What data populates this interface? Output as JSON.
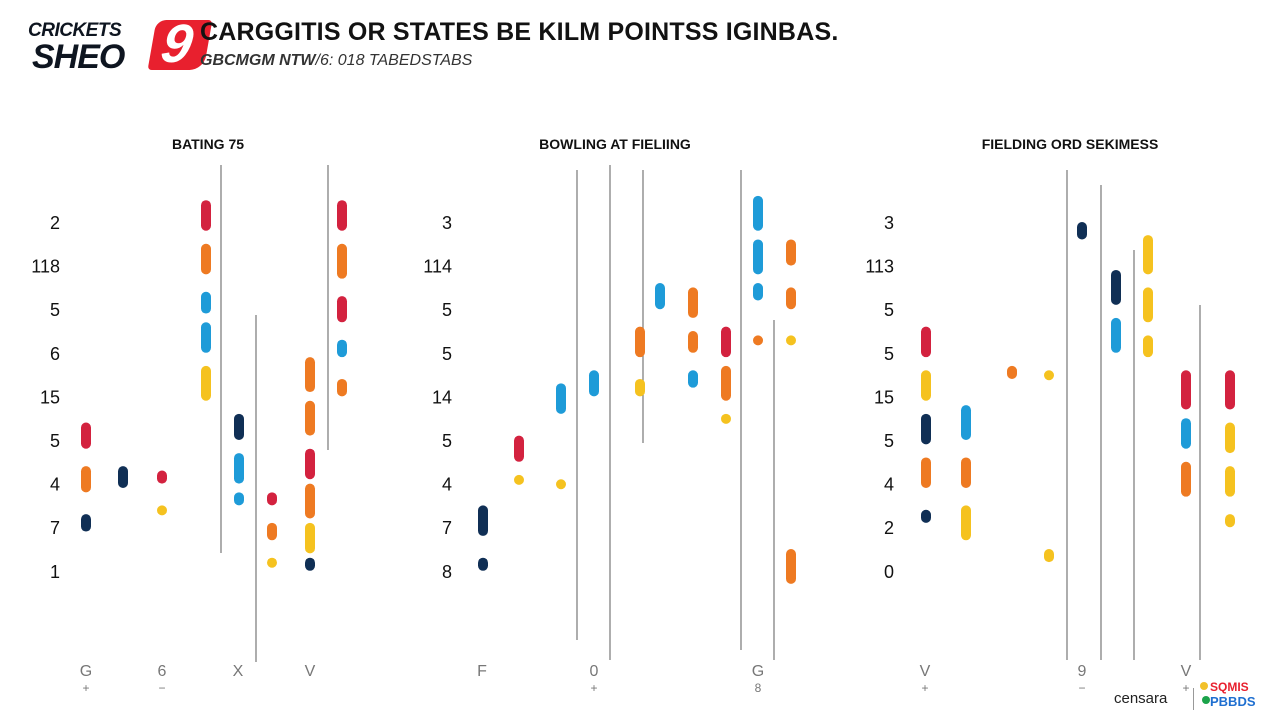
{
  "logo": {
    "top": "CRICKETS",
    "bottom": "SHEO",
    "badge": "9"
  },
  "header": {
    "title": "CARGGITIS OR STATES BE KILM POINTSS IGINBAS.",
    "subtitle_bold": "GBCMGM NTW",
    "subtitle_rest": "/6: 018 TABEDSTABS"
  },
  "footer": {
    "credit": "censara",
    "brand_top": "SQMIS",
    "brand_bottom": "PBBDS"
  },
  "colors": {
    "red": "#d3223f",
    "orange": "#ee7a22",
    "blue": "#1e9bd8",
    "navy": "#102f55",
    "yellow": "#f5c21f",
    "line": "#777777"
  },
  "chart_data": [
    {
      "type": "scatter",
      "title": "BATING 75",
      "ylabels": [
        "2",
        "118",
        "5",
        "6",
        "15",
        "5",
        "4",
        "7",
        "1"
      ],
      "xlabels": [
        {
          "text": "G",
          "sub": "+"
        },
        {
          "text": "6",
          "sub": "−"
        },
        {
          "text": "X",
          "sub": ""
        },
        {
          "text": "V",
          "sub": ""
        }
      ],
      "columns": [
        {
          "marks": [
            {
              "from": 4.6,
              "to": 5.2,
              "color": "red"
            },
            {
              "from": 5.6,
              "to": 6.2,
              "color": "orange"
            },
            {
              "from": 6.7,
              "to": 7.1,
              "color": "navy"
            }
          ]
        },
        {
          "marks": [
            {
              "from": 5.6,
              "to": 6.1,
              "color": "navy"
            }
          ]
        },
        {
          "marks": [
            {
              "from": 5.7,
              "to": 6.0,
              "color": "red"
            },
            {
              "from": 6.5,
              "to": 6.7,
              "color": "yellow"
            }
          ]
        },
        {
          "marks": [
            {
              "from": -0.5,
              "to": 0.2,
              "color": "red"
            },
            {
              "from": 0.5,
              "to": 1.2,
              "color": "orange"
            },
            {
              "from": 1.6,
              "to": 2.1,
              "color": "blue"
            },
            {
              "from": 2.3,
              "to": 3.0,
              "color": "blue"
            },
            {
              "from": 3.3,
              "to": 4.1,
              "color": "yellow"
            }
          ]
        },
        {
          "marks": [
            {
              "from": 4.4,
              "to": 5.0,
              "color": "navy"
            },
            {
              "from": 5.3,
              "to": 6.0,
              "color": "blue"
            },
            {
              "from": 6.2,
              "to": 6.5,
              "color": "blue"
            }
          ]
        },
        {
          "marks": [
            {
              "from": 6.2,
              "to": 6.5,
              "color": "red"
            },
            {
              "from": 6.9,
              "to": 7.3,
              "color": "orange"
            },
            {
              "from": 7.7,
              "to": 7.8,
              "color": "yellow"
            }
          ]
        },
        {
          "marks": [
            {
              "from": 3.1,
              "to": 3.9,
              "color": "orange"
            },
            {
              "from": 4.1,
              "to": 4.9,
              "color": "orange"
            },
            {
              "from": 5.2,
              "to": 5.9,
              "color": "red"
            },
            {
              "from": 6.0,
              "to": 6.8,
              "color": "orange"
            },
            {
              "from": 6.9,
              "to": 7.6,
              "color": "yellow"
            },
            {
              "from": 7.7,
              "to": 8.0,
              "color": "navy"
            }
          ]
        },
        {
          "marks": [
            {
              "from": -0.5,
              "to": 0.2,
              "color": "red"
            },
            {
              "from": 0.5,
              "to": 1.3,
              "color": "orange"
            },
            {
              "from": 1.7,
              "to": 2.3,
              "color": "red"
            },
            {
              "from": 2.7,
              "to": 3.1,
              "color": "blue"
            },
            {
              "from": 3.6,
              "to": 4.0,
              "color": "orange"
            }
          ]
        }
      ]
    },
    {
      "type": "scatter",
      "title": "BOWLING AT FIELIING",
      "ylabels": [
        "3",
        "114",
        "5",
        "5",
        "14",
        "5",
        "4",
        "7",
        "8"
      ],
      "xlabels": [
        {
          "text": "F",
          "sub": ""
        },
        {
          "text": "0",
          "sub": "+"
        },
        {
          "text": "G",
          "sub": "8"
        }
      ],
      "columns": [
        {
          "marks": [
            {
              "from": 6.5,
              "to": 7.2,
              "color": "navy"
            },
            {
              "from": 7.7,
              "to": 8.0,
              "color": "navy"
            }
          ]
        },
        {
          "marks": [
            {
              "from": 4.9,
              "to": 5.5,
              "color": "red"
            },
            {
              "from": 5.8,
              "to": 6.0,
              "color": "yellow"
            }
          ]
        },
        {
          "marks": [
            {
              "from": 3.7,
              "to": 4.4,
              "color": "blue"
            },
            {
              "from": 5.9,
              "to": 6.0,
              "color": "yellow"
            }
          ]
        },
        {
          "marks": [
            {
              "from": 3.4,
              "to": 4.0,
              "color": "blue"
            }
          ]
        },
        {
          "marks": [
            {
              "from": 1.4,
              "to": 2.0,
              "color": "blue"
            }
          ]
        },
        {
          "marks": [
            {
              "from": 1.5,
              "to": 2.2,
              "color": "orange"
            },
            {
              "from": 2.5,
              "to": 3.0,
              "color": "orange"
            },
            {
              "from": 3.4,
              "to": 3.8,
              "color": "blue"
            }
          ]
        },
        {
          "marks": [
            {
              "from": 2.4,
              "to": 3.1,
              "color": "red"
            },
            {
              "from": 3.3,
              "to": 4.1,
              "color": "orange"
            },
            {
              "from": 4.4,
              "to": 4.6,
              "color": "yellow"
            }
          ]
        },
        {
          "marks": [
            {
              "from": -0.6,
              "to": 0.2,
              "color": "blue"
            },
            {
              "from": 0.4,
              "to": 1.2,
              "color": "blue"
            },
            {
              "from": 1.4,
              "to": 1.8,
              "color": "blue"
            },
            {
              "from": 2.6,
              "to": 2.8,
              "color": "orange"
            }
          ]
        },
        {
          "marks": [
            {
              "from": 0.4,
              "to": 1.0,
              "color": "orange"
            },
            {
              "from": 1.5,
              "to": 2.0,
              "color": "orange"
            },
            {
              "from": 2.6,
              "to": 2.7,
              "color": "yellow"
            },
            {
              "from": 7.5,
              "to": 8.3,
              "color": "orange"
            }
          ]
        },
        {
          "marks": [
            {
              "from": 2.4,
              "to": 3.1,
              "color": "orange"
            },
            {
              "from": 3.6,
              "to": 4.0,
              "color": "yellow"
            }
          ]
        }
      ]
    },
    {
      "type": "scatter",
      "title": "FIELDING ORD SEKIMESS",
      "ylabels": [
        "3",
        "113",
        "5",
        "5",
        "15",
        "5",
        "4",
        "2",
        "0"
      ],
      "xlabels": [
        {
          "text": "V",
          "sub": "+"
        },
        {
          "text": "9",
          "sub": "−"
        },
        {
          "text": "V",
          "sub": "+"
        }
      ],
      "columns": [
        {
          "marks": [
            {
              "from": 2.4,
              "to": 3.1,
              "color": "red"
            },
            {
              "from": 3.4,
              "to": 4.1,
              "color": "yellow"
            },
            {
              "from": 4.4,
              "to": 5.1,
              "color": "navy"
            },
            {
              "from": 5.4,
              "to": 6.1,
              "color": "orange"
            },
            {
              "from": 6.6,
              "to": 6.9,
              "color": "navy"
            }
          ]
        },
        {
          "marks": [
            {
              "from": 4.2,
              "to": 5.0,
              "color": "blue"
            },
            {
              "from": 5.4,
              "to": 6.1,
              "color": "orange"
            },
            {
              "from": 6.5,
              "to": 7.3,
              "color": "yellow"
            }
          ]
        },
        {
          "marks": [
            {
              "from": 3.3,
              "to": 3.6,
              "color": "orange"
            }
          ]
        },
        {
          "marks": [
            {
              "from": 3.4,
              "to": 3.5,
              "color": "yellow"
            },
            {
              "from": 7.5,
              "to": 7.8,
              "color": "yellow"
            }
          ]
        },
        {
          "marks": [
            {
              "from": 0.0,
              "to": 0.4,
              "color": "navy"
            }
          ]
        },
        {
          "marks": [
            {
              "from": 1.1,
              "to": 1.9,
              "color": "navy"
            },
            {
              "from": 2.2,
              "to": 3.0,
              "color": "blue"
            }
          ]
        },
        {
          "marks": [
            {
              "from": 0.3,
              "to": 1.2,
              "color": "yellow"
            },
            {
              "from": 1.5,
              "to": 2.3,
              "color": "yellow"
            },
            {
              "from": 2.6,
              "to": 3.1,
              "color": "yellow"
            }
          ]
        },
        {
          "marks": [
            {
              "from": 3.4,
              "to": 4.3,
              "color": "red"
            },
            {
              "from": 4.5,
              "to": 5.2,
              "color": "blue"
            },
            {
              "from": 5.5,
              "to": 6.3,
              "color": "orange"
            }
          ]
        },
        {
          "marks": [
            {
              "from": 3.4,
              "to": 4.3,
              "color": "red"
            },
            {
              "from": 4.6,
              "to": 5.3,
              "color": "yellow"
            },
            {
              "from": 5.6,
              "to": 6.3,
              "color": "yellow"
            },
            {
              "from": 6.7,
              "to": 7.0,
              "color": "yellow"
            }
          ]
        }
      ]
    }
  ]
}
